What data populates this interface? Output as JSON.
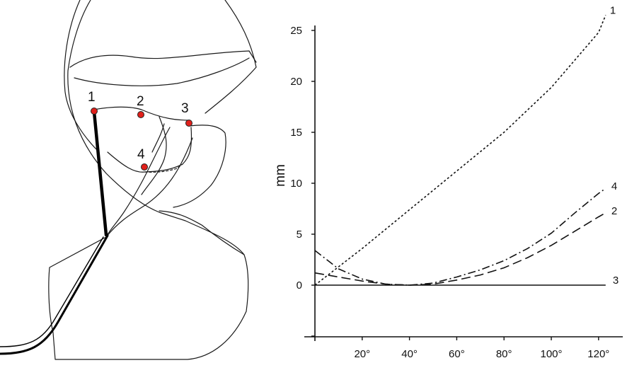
{
  "anatomy": {
    "points": [
      {
        "label": "1",
        "color": "#e0201b"
      },
      {
        "label": "2",
        "color": "#e0201b"
      },
      {
        "label": "3",
        "color": "#e0201b"
      },
      {
        "label": "4",
        "color": "#e0201b"
      }
    ]
  },
  "chart_data": {
    "type": "line",
    "ylabel": "mm",
    "xlabel": "",
    "x_ticks": [
      "20°",
      "40°",
      "60°",
      "80°",
      "100°",
      "120°"
    ],
    "y_ticks": [
      "0",
      "5",
      "10",
      "15",
      "20",
      "25"
    ],
    "xlim": [
      0,
      125
    ],
    "ylim": [
      -5,
      27
    ],
    "grid": false,
    "series": [
      {
        "name": "1",
        "style": "short-dash",
        "x": [
          0,
          20,
          40,
          60,
          80,
          100,
          120,
          123
        ],
        "y": [
          0,
          3.6,
          7.4,
          11.2,
          15.0,
          19.4,
          24.8,
          26.5
        ]
      },
      {
        "name": "2",
        "style": "long-dash",
        "x": [
          0,
          10,
          20,
          30,
          40,
          50,
          60,
          70,
          80,
          90,
          100,
          110,
          120,
          123
        ],
        "y": [
          1.2,
          0.8,
          0.4,
          0.1,
          0.0,
          0.1,
          0.5,
          1.0,
          1.7,
          2.7,
          3.9,
          5.3,
          6.7,
          7.1
        ]
      },
      {
        "name": "3",
        "style": "solid",
        "x": [
          0,
          123
        ],
        "y": [
          0,
          0
        ]
      },
      {
        "name": "4",
        "style": "dash-dot",
        "x": [
          0,
          10,
          20,
          30,
          40,
          50,
          60,
          70,
          80,
          90,
          100,
          110,
          120,
          123
        ],
        "y": [
          3.4,
          1.6,
          0.6,
          0.1,
          0.0,
          0.2,
          0.8,
          1.5,
          2.4,
          3.6,
          5.1,
          7.1,
          9.0,
          9.5
        ]
      }
    ]
  }
}
